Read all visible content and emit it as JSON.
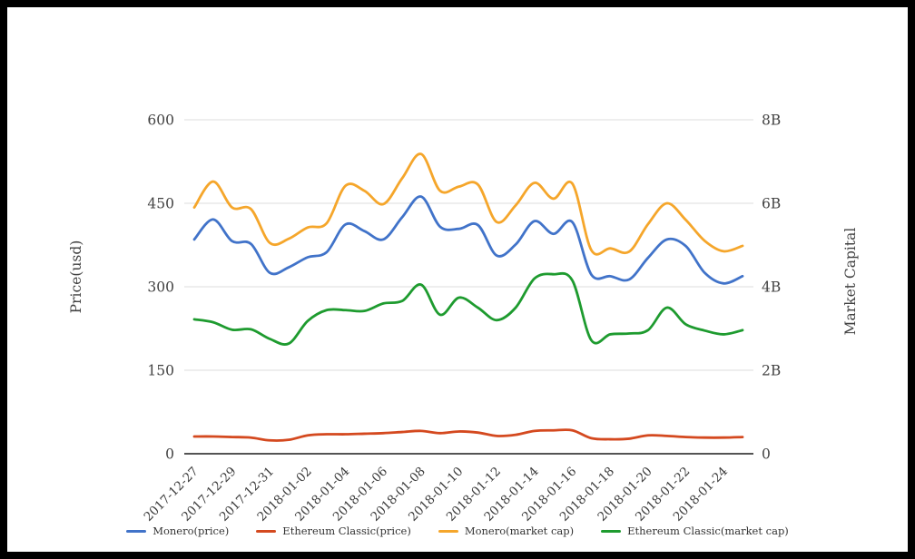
{
  "page": {
    "background_color": "#ffffff",
    "frame_color": "#000000",
    "text_color": "#424242"
  },
  "chart_data": {
    "type": "line",
    "title": "",
    "grid_color": "#dcdcdc",
    "baseline_color": "#3c3c3c",
    "x_label_rotation": -45,
    "x_tick_every": 2,
    "x": [
      "2017-12-27",
      "2017-12-28",
      "2017-12-29",
      "2017-12-30",
      "2017-12-31",
      "2018-01-01",
      "2018-01-02",
      "2018-01-03",
      "2018-01-04",
      "2018-01-05",
      "2018-01-06",
      "2018-01-07",
      "2018-01-08",
      "2018-01-09",
      "2018-01-10",
      "2018-01-11",
      "2018-01-12",
      "2018-01-13",
      "2018-01-14",
      "2018-01-15",
      "2018-01-16",
      "2018-01-17",
      "2018-01-18",
      "2018-01-19",
      "2018-01-20",
      "2018-01-21",
      "2018-01-22",
      "2018-01-23",
      "2018-01-24",
      "2018-01-25"
    ],
    "x_tick_labels": [
      "2017-12-27",
      "2017-12-29",
      "2017-12-31",
      "2018-01-02",
      "2018-01-04",
      "2018-01-06",
      "2018-01-08",
      "2018-01-10",
      "2018-01-12",
      "2018-01-14",
      "2018-01-16",
      "2018-01-18",
      "2018-01-20",
      "2018-01-22",
      "2018-01-24"
    ],
    "left_axis": {
      "title": "Price(usd)",
      "ticks": [
        "0",
        "150",
        "300",
        "450",
        "600"
      ],
      "tick_values": [
        0,
        150,
        300,
        450,
        600
      ],
      "range": [
        0,
        600
      ]
    },
    "right_axis": {
      "title": "Market Capital",
      "ticks": [
        "0",
        "2B",
        "4B",
        "6B",
        "8B"
      ],
      "tick_values": [
        0,
        2,
        4,
        6,
        8
      ],
      "range": [
        0,
        8
      ]
    },
    "legend_position": "bottom",
    "series": [
      {
        "name": "Monero(price)",
        "axis": "left",
        "color": "#4173c9",
        "values": [
          385,
          421,
          382,
          377,
          325,
          335,
          353,
          362,
          412,
          400,
          385,
          425,
          462,
          408,
          404,
          411,
          356,
          376,
          418,
          395,
          416,
          322,
          319,
          313,
          352,
          385,
          373,
          325,
          306,
          319
        ]
      },
      {
        "name": "Ethereum Classic(price)",
        "axis": "left",
        "color": "#d4491f",
        "values": [
          31,
          31,
          30,
          29,
          24,
          25,
          33,
          35,
          35,
          36,
          37,
          39,
          41,
          37,
          40,
          38,
          32,
          34,
          41,
          42,
          42,
          28,
          26,
          27,
          33,
          32,
          30,
          29,
          29,
          30
        ]
      },
      {
        "name": "Monero(market cap)",
        "axis": "right",
        "color": "#f5a62b",
        "values": [
          5.9,
          6.52,
          5.9,
          5.86,
          5.05,
          5.15,
          5.42,
          5.52,
          6.42,
          6.3,
          5.98,
          6.6,
          7.18,
          6.3,
          6.4,
          6.45,
          5.55,
          5.95,
          6.49,
          6.11,
          6.47,
          4.88,
          4.92,
          4.84,
          5.5,
          6.0,
          5.6,
          5.1,
          4.85,
          4.98
        ]
      },
      {
        "name": "Ethereum Classic(market cap)",
        "axis": "right",
        "color": "#1e9b2f",
        "values": [
          3.22,
          3.15,
          2.97,
          2.98,
          2.75,
          2.64,
          3.18,
          3.44,
          3.44,
          3.42,
          3.6,
          3.66,
          4.05,
          3.33,
          3.74,
          3.5,
          3.2,
          3.5,
          4.2,
          4.3,
          4.15,
          2.72,
          2.86,
          2.88,
          2.96,
          3.5,
          3.1,
          2.95,
          2.86,
          2.96
        ]
      }
    ]
  }
}
